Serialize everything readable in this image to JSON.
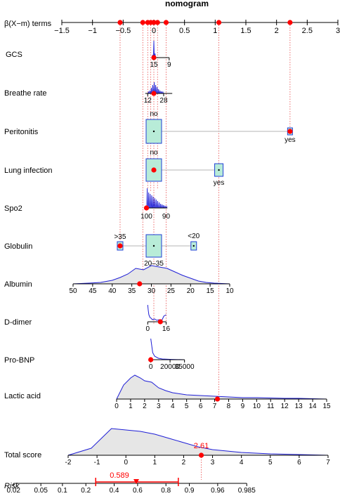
{
  "chart_data": {
    "type": "nomogram",
    "title": "nomogram",
    "beta_axis": {
      "label": "β(X−m) terms",
      "range": [
        -1.5,
        3
      ],
      "ticks": [
        -1.5,
        -1,
        -0.5,
        0,
        0.5,
        1,
        1.5,
        2,
        2.5,
        3
      ],
      "tick_labels": [
        "−1.5",
        "−1",
        "−0.5",
        "0",
        "0.5",
        "1",
        "1.5",
        "2",
        "2.5",
        "3"
      ],
      "points": [
        -0.55,
        -0.18,
        -0.1,
        -0.05,
        0.0,
        0.06,
        0.2,
        1.06,
        2.22
      ]
    },
    "variables": [
      {
        "name": "GCS",
        "kind": "density",
        "scale_ticks": [
          {
            "value": 15,
            "beta": 0
          },
          {
            "value": 9,
            "beta": 0.25
          }
        ],
        "selected": {
          "value": 15,
          "beta": 0
        }
      },
      {
        "name": "Breathe rate",
        "kind": "density",
        "scale_ticks": [
          {
            "value": 12,
            "beta": -0.1
          },
          {
            "value": 28,
            "beta": 0.16
          }
        ],
        "selected": {
          "value": 21,
          "beta": 0.0
        }
      },
      {
        "name": "Peritonitis",
        "kind": "categorical",
        "levels": [
          {
            "label": "no",
            "beta": 0.0,
            "freq": 0.8
          },
          {
            "label": "yes",
            "beta": 2.22,
            "freq": 0.05
          }
        ],
        "selected": {
          "label": "yes",
          "beta": 2.22
        }
      },
      {
        "name": "Lung infection",
        "kind": "categorical",
        "levels": [
          {
            "label": "no",
            "beta": 0.0,
            "freq": 0.7
          },
          {
            "label": "yes",
            "beta": 1.06,
            "freq": 0.15
          }
        ],
        "selected": {
          "label": "no",
          "beta": 0.0
        }
      },
      {
        "name": "Spo2",
        "kind": "density",
        "scale_ticks": [
          {
            "value": 100,
            "beta": -0.12
          },
          {
            "value": 90,
            "beta": 0.2
          }
        ],
        "selected": {
          "value": 100,
          "beta": -0.12
        }
      },
      {
        "name": "Globulin",
        "kind": "categorical",
        "levels": [
          {
            "label": ">35",
            "beta": -0.55,
            "freq": 0.08
          },
          {
            "label": "20–35",
            "beta": 0.0,
            "freq": 0.8
          },
          {
            "label": "<20",
            "beta": 0.65,
            "freq": 0.06
          }
        ],
        "selected": {
          "label": ">35",
          "beta": -0.55
        }
      },
      {
        "name": "Albumin",
        "kind": "density_axis",
        "axis": {
          "start": 50,
          "end": 10,
          "ticks": [
            50,
            45,
            40,
            35,
            30,
            25,
            20,
            15,
            10
          ]
        },
        "selected": {
          "value": 33
        }
      },
      {
        "name": "D-dimer",
        "kind": "density",
        "scale_ticks": [
          {
            "value": 0,
            "beta": -0.1
          },
          {
            "value": 16,
            "beta": 0.2
          }
        ],
        "selected": {
          "value": 11,
          "beta": 0.2
        }
      },
      {
        "name": "Pro-BNP",
        "kind": "density",
        "scale_ticks": [
          {
            "value": 0,
            "beta": -0.05
          },
          {
            "value": 20000,
            "beta": 0.27
          },
          {
            "value": 35000,
            "beta": 0.5
          }
        ],
        "tick_labels": [
          "0",
          "20000",
          "35000"
        ],
        "selected": {
          "value": 0,
          "beta": -0.05
        }
      },
      {
        "name": "Lactic acid",
        "kind": "density_axis",
        "axis": {
          "start": 0,
          "end": 15,
          "ticks": [
            0,
            1,
            2,
            3,
            4,
            5,
            6,
            7,
            8,
            9,
            10,
            11,
            12,
            13,
            14,
            15
          ]
        },
        "selected": {
          "value": 7.2
        }
      }
    ],
    "total_score": {
      "label": "Total score",
      "axis": {
        "start": -2,
        "end": 7,
        "ticks": [
          -2,
          -1,
          0,
          1,
          2,
          3,
          4,
          5,
          6,
          7
        ]
      },
      "value": 2.61,
      "value_label": "2.61"
    },
    "risk": {
      "label": "Risk",
      "ticks": [
        0.02,
        0.05,
        0.1,
        0.2,
        0.4,
        0.6,
        0.8,
        0.9,
        0.96,
        0.985
      ],
      "tick_labels": [
        "0.02",
        "0.05",
        "0.1",
        "0.2",
        "0.4",
        "0.6",
        "0.8",
        "0.9",
        "0.96",
        "0.985"
      ],
      "value": 0.589,
      "value_label": "0.589",
      "ci": [
        0.26,
        0.86
      ]
    },
    "colors": {
      "axis": "#000000",
      "density": "#1f1fd6",
      "density_fill": "#e6e6e6",
      "box_fill": "#b8ecd8",
      "box_stroke": "#1f3fd6",
      "marker": "#ff0000",
      "guide": "#e84a4a",
      "connector": "#b4b4b4"
    }
  }
}
